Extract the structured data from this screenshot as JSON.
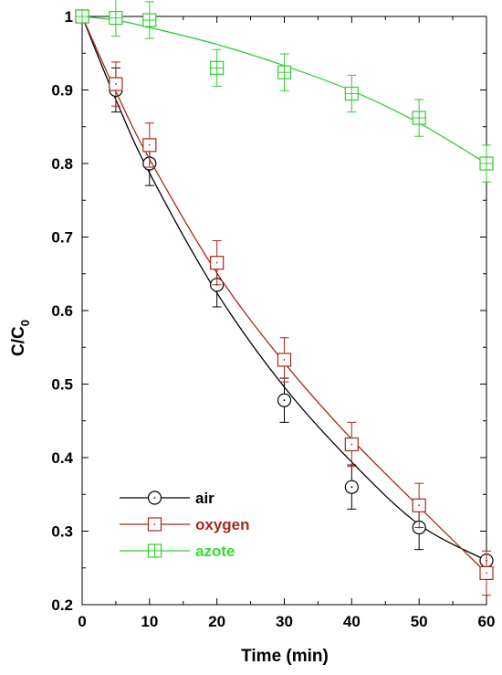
{
  "chart_data": {
    "type": "line",
    "xlabel": "Time (min)",
    "ylabel": "C/C",
    "ylabel_sub": "0",
    "xlim": [
      0,
      60
    ],
    "ylim": [
      0.2,
      1.0
    ],
    "xticks": [
      0,
      10,
      20,
      30,
      40,
      50,
      60
    ],
    "yticks": [
      0.2,
      0.3,
      0.4,
      0.5,
      0.6,
      0.7,
      0.8,
      0.9,
      1
    ],
    "ytick_labels": [
      "0.2",
      "0.3",
      "0.4",
      "0.5",
      "0.6",
      "0.7",
      "0.8",
      "0.9",
      "1"
    ],
    "grid": false,
    "legend_position": "bottom-left",
    "series": [
      {
        "name": "air",
        "marker": "circle",
        "color": "#000000",
        "label_color": "#000000",
        "x": [
          0,
          5,
          10,
          20,
          30,
          40,
          50,
          60
        ],
        "y": [
          1.0,
          0.9,
          0.8,
          0.635,
          0.478,
          0.36,
          0.305,
          0.26
        ],
        "err": [
          0,
          0.03,
          0.03,
          0.03,
          0.03,
          0.03,
          0.03,
          0.0
        ],
        "curve_y": [
          1.0,
          0.887,
          0.787,
          0.624,
          0.496,
          0.394,
          0.309,
          0.26
        ]
      },
      {
        "name": "oxygen",
        "marker": "square",
        "color": "#a52a1a",
        "label_color": "#a52a1a",
        "x": [
          0,
          5,
          10,
          20,
          30,
          40,
          50,
          60
        ],
        "y": [
          1.0,
          0.908,
          0.825,
          0.665,
          0.533,
          0.418,
          0.335,
          0.243
        ],
        "err": [
          0,
          0.03,
          0.03,
          0.03,
          0.03,
          0.03,
          0.03,
          0.03
        ],
        "curve_y": [
          1.0,
          0.898,
          0.806,
          0.651,
          0.529,
          0.425,
          0.333,
          0.243
        ]
      },
      {
        "name": "azote",
        "marker": "crossed-square",
        "color": "#33cc33",
        "label_color": "#33dd33",
        "x": [
          0,
          5,
          10,
          20,
          30,
          40,
          50,
          60
        ],
        "y": [
          1.0,
          0.998,
          0.995,
          0.93,
          0.924,
          0.895,
          0.862,
          0.8
        ],
        "err": [
          0,
          0.025,
          0.025,
          0.025,
          0.025,
          0.025,
          0.025,
          0.025
        ],
        "curve_y": [
          1.0,
          0.995,
          0.985,
          0.962,
          0.933,
          0.899,
          0.855,
          0.8
        ]
      }
    ]
  }
}
